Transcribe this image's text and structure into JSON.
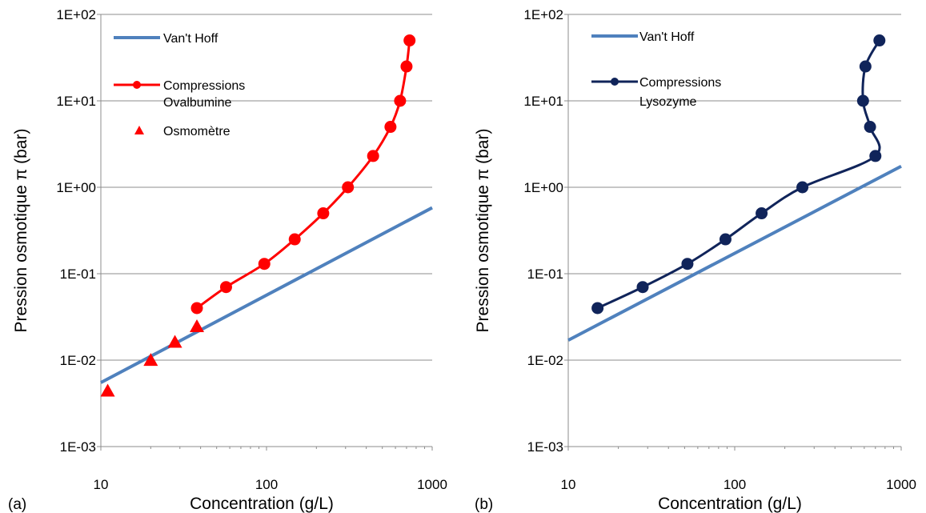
{
  "chart_data": [
    {
      "type": "line",
      "panel_label": "(a)",
      "xlabel": "Concentration (g/L)",
      "ylabel": "Pression osmotique π (bar)",
      "x_scale": "log",
      "y_scale": "log",
      "xlim": [
        10,
        1000
      ],
      "ylim": [
        0.001,
        100
      ],
      "x_ticks": [
        "10",
        "100",
        "1000"
      ],
      "y_ticks": [
        "1E-03",
        "1E-02",
        "1E-01",
        "1E+00",
        "1E+01",
        "1E+02"
      ],
      "grid": "horizontal",
      "legend_position": "top-left",
      "series": [
        {
          "name": "Van't Hoff",
          "style": "line",
          "color": "#4f81bd",
          "x": [
            10,
            1000
          ],
          "y": [
            0.0055,
            0.58
          ]
        },
        {
          "name": "Compressions Ovalbumine",
          "style": "line-markers",
          "color": "#ff0000",
          "x": [
            38,
            57,
            97,
            148,
            220,
            310,
            440,
            560,
            640,
            700,
            730
          ],
          "y": [
            0.04,
            0.07,
            0.13,
            0.25,
            0.5,
            1,
            2.3,
            5,
            10,
            25,
            50
          ]
        },
        {
          "name": "Osmomètre",
          "style": "triangles",
          "color": "#ff0000",
          "x": [
            11,
            20,
            28,
            38
          ],
          "y": [
            0.0045,
            0.0102,
            0.0165,
            0.025
          ]
        }
      ]
    },
    {
      "type": "line",
      "panel_label": "(b)",
      "xlabel": "Concentration (g/L)",
      "ylabel": "Pression osmotique π (bar)",
      "x_scale": "log",
      "y_scale": "log",
      "xlim": [
        10,
        1000
      ],
      "ylim": [
        0.001,
        100
      ],
      "x_ticks": [
        "10",
        "100",
        "1000"
      ],
      "y_ticks": [
        "1E-03",
        "1E-02",
        "1E-01",
        "1E+00",
        "1E+01",
        "1E+02"
      ],
      "grid": "horizontal",
      "legend_position": "top-left",
      "series": [
        {
          "name": "Van't Hoff",
          "style": "line",
          "color": "#4f81bd",
          "x": [
            10,
            1000
          ],
          "y": [
            0.017,
            1.75
          ]
        },
        {
          "name": "Compressions Lysozyme",
          "style": "line-markers",
          "color": "#10245a",
          "x": [
            15,
            28,
            52,
            88,
            145,
            255,
            700,
            650,
            590,
            610,
            740
          ],
          "y": [
            0.04,
            0.07,
            0.13,
            0.25,
            0.5,
            1,
            2.3,
            5,
            10,
            25,
            50
          ]
        }
      ]
    }
  ]
}
